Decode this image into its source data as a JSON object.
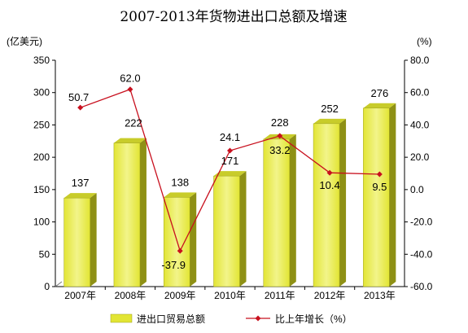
{
  "chart_data": {
    "type": "bar",
    "title": "2007-2013年货物进出口总额及增速",
    "left_axis_unit": "(亿美元)",
    "right_axis_unit": "(%)",
    "categories": [
      "2007年",
      "2008年",
      "2009年",
      "2010年",
      "2011年",
      "2012年",
      "2013年"
    ],
    "left_ylim": [
      0,
      350
    ],
    "left_ticks": [
      0,
      50,
      100,
      150,
      200,
      250,
      300,
      350
    ],
    "right_ylim": [
      -60,
      80
    ],
    "right_ticks": [
      "-60.0",
      "-40.0",
      "-20.0",
      "0.0",
      "20.0",
      "40.0",
      "60.0",
      "80.0"
    ],
    "series": [
      {
        "name": "进出口贸易总额",
        "kind": "bar",
        "axis": "left",
        "values": [
          137,
          222,
          138,
          171,
          228,
          252,
          276
        ],
        "labels": [
          "137",
          "222",
          "138",
          "171",
          "228",
          "252",
          "276"
        ]
      },
      {
        "name": "比上年增长（%）",
        "kind": "line",
        "axis": "right",
        "values": [
          50.7,
          62.0,
          -37.9,
          24.1,
          33.2,
          10.4,
          9.5
        ],
        "labels": [
          "50.7",
          "62.0",
          "-37.9",
          "24.1",
          "33.2",
          "10.4",
          "9.5"
        ]
      }
    ],
    "colors": {
      "bar_front": "#e2e534",
      "bar_front_light": "#f2f48a",
      "bar_side": "#8e9015",
      "bar_top": "#c8cc2a",
      "line": "#c8101e",
      "frame": "#000000"
    },
    "legend_position": "bottom"
  }
}
